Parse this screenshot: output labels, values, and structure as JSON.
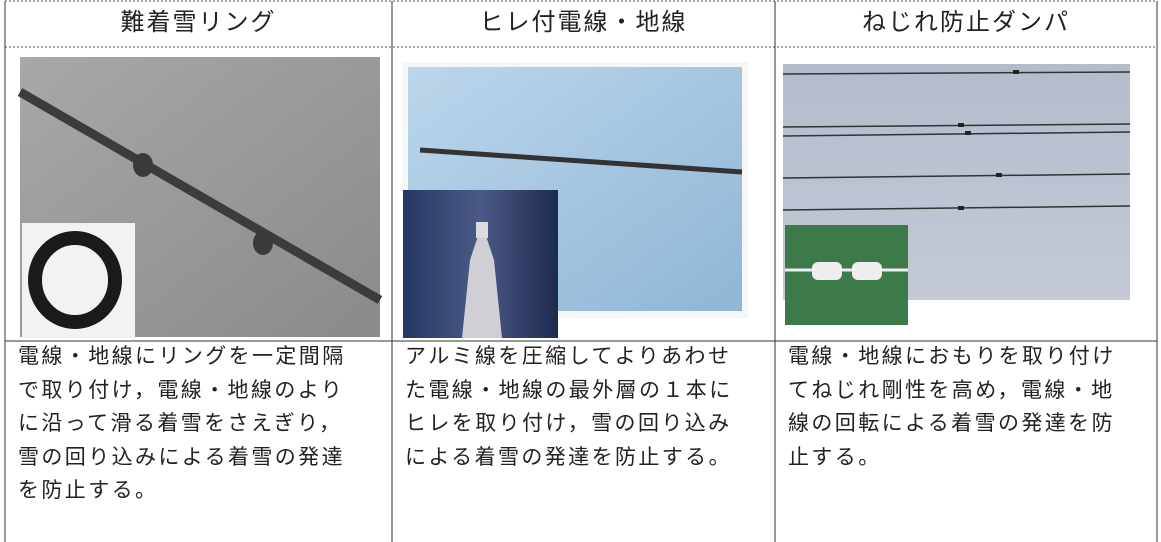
{
  "table": {
    "headers": [
      "難着雪リング",
      "ヒレ付電線・地線",
      "ねじれ防止ダンパ"
    ],
    "descriptions": [
      [
        "電線・地線にリングを一定間隔",
        "で取り付け，電線・地線のより",
        "に沿って滑る着雪をさえぎり，",
        "雪の回り込みによる着雪の発達",
        "を防止する。"
      ],
      [
        "アルミ線を圧縮してよりあわせ",
        "た電線・地線の最外層の１本に",
        "ヒレを取り付け，雪の回り込み",
        "による着雪の発達を防止する。"
      ],
      [
        "電線・地線におもりを取り付け",
        "てねじれ剛性を高め，電線・地",
        "線の回転による着雪の発達を防",
        "止する。"
      ]
    ]
  }
}
